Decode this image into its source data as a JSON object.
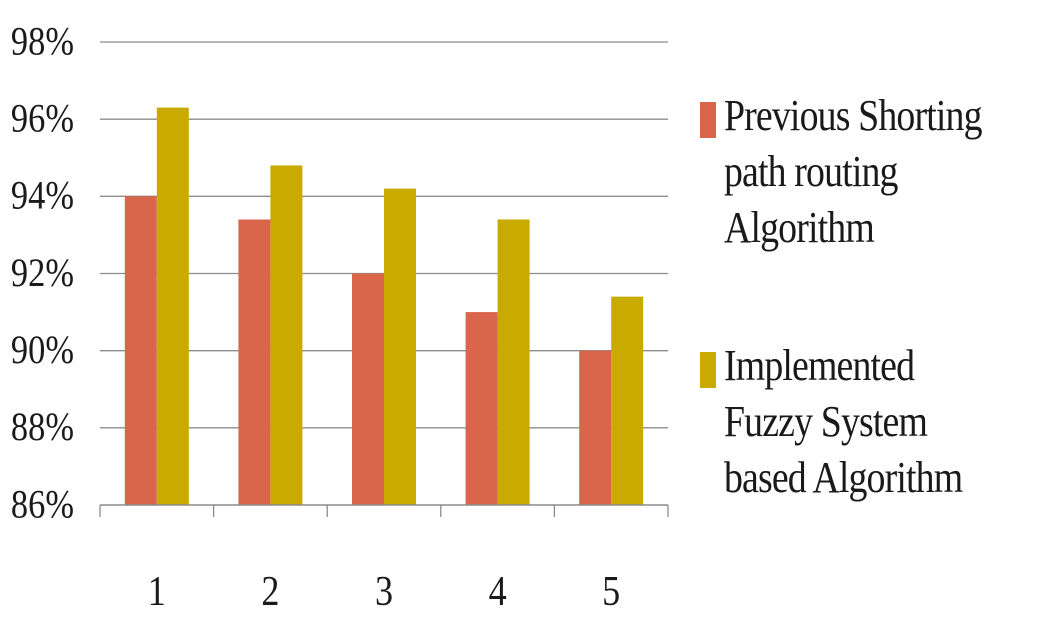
{
  "chart_data": {
    "type": "bar",
    "categories": [
      "1",
      "2",
      "3",
      "4",
      "5"
    ],
    "series": [
      {
        "name": "Previous Shorting path routing Algorithm",
        "color": "#d9664a",
        "values": [
          94.0,
          93.4,
          92.0,
          91.0,
          90.0
        ]
      },
      {
        "name": "Implemented Fuzzy System based Algorithm",
        "color": "#c8aa00",
        "values": [
          96.3,
          94.8,
          94.2,
          93.4,
          91.4
        ]
      }
    ],
    "y_ticks": [
      "86%",
      "88%",
      "90%",
      "92%",
      "94%",
      "96%",
      "98%"
    ],
    "ylim": [
      86,
      98
    ],
    "title": "",
    "xlabel": "",
    "ylabel": "",
    "grid": true,
    "legend_position": "right"
  }
}
